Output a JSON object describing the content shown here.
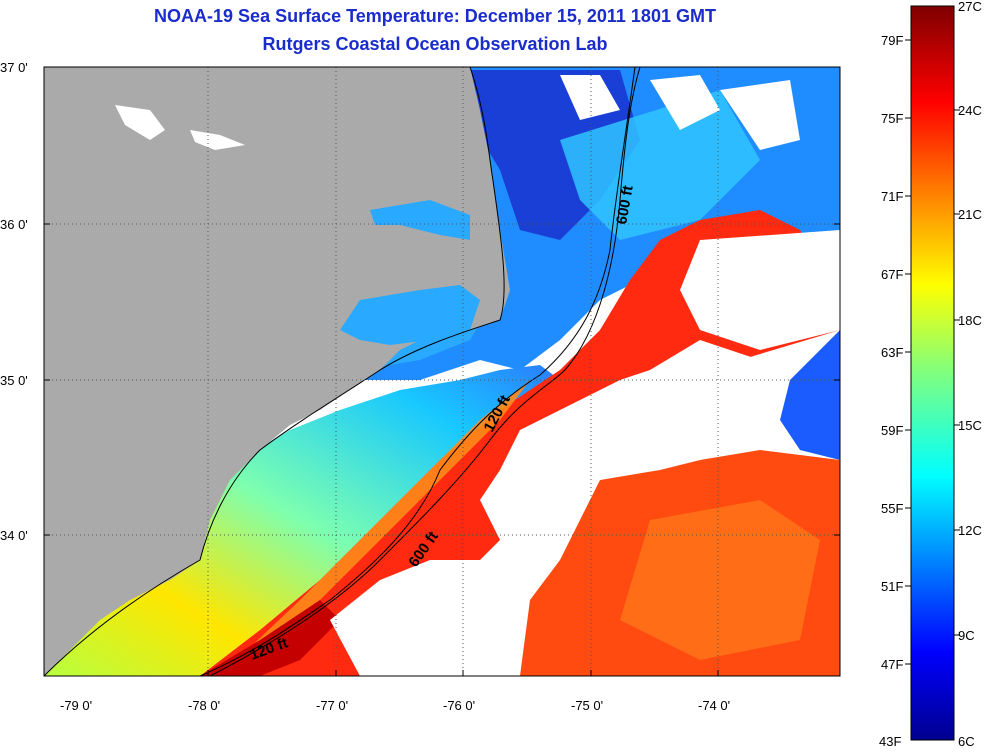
{
  "title": "NOAA-19 Sea Surface Temperature:  December 15, 2011 1801 GMT",
  "subtitle": "Rutgers Coastal Ocean Observation Lab",
  "map": {
    "lat_labels": [
      "37 0'",
      "36 0'",
      "35 0'",
      "34 0'"
    ],
    "lon_labels": [
      "-79 0'",
      "-78 0'",
      "-77 0'",
      "-76 0'",
      "-75 0'",
      "-74 0'"
    ],
    "contour_labels": [
      "600 ft",
      "120 ft",
      "600 ft",
      "120 ft"
    ]
  },
  "colorbar": {
    "celsius_labels": [
      "27C",
      "24C",
      "21C",
      "18C",
      "15C",
      "12C",
      "9C",
      "6C"
    ],
    "fahrenheit_labels": [
      "79F",
      "75F",
      "71F",
      "67F",
      "63F",
      "59F",
      "55F",
      "51F",
      "47F",
      "43F"
    ],
    "colormap": "jet",
    "range_c": [
      6,
      27
    ]
  },
  "colors": {
    "land": "#aaaaaa",
    "title": "#1a2ccc",
    "cloud_mask": "#ffffff"
  }
}
